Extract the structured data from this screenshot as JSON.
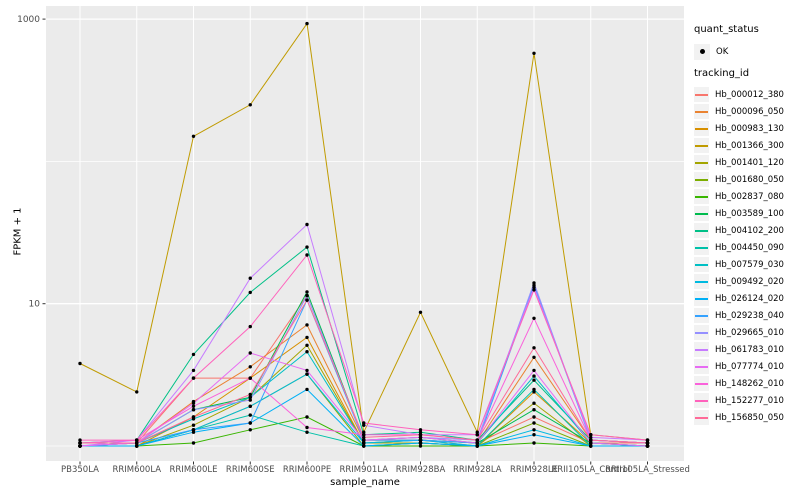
{
  "figure": {
    "background": "#FFFFFF",
    "panel_background": "#EBEBEB",
    "gridline_color": "#FFFFFF",
    "point_color": "#000000",
    "axis_text_color": "#4D4D4D",
    "tick_color": "#333333"
  },
  "axes": {
    "x": {
      "title": "sample_name"
    },
    "y": {
      "title": "FPKM + 1",
      "tick_labels": [
        "10",
        "1000"
      ],
      "tick_values": [
        10,
        1000
      ],
      "minor_values": [
        1,
        100
      ],
      "scale": "log10"
    }
  },
  "legend": {
    "quant_status": {
      "title": "quant_status",
      "items": [
        {
          "label": "OK",
          "symbol": "point"
        }
      ]
    },
    "tracking_id": {
      "title": "tracking_id"
    }
  },
  "chart_data": {
    "type": "line",
    "title": "",
    "xlabel": "sample_name",
    "ylabel": "FPKM + 1",
    "y_scale": "log10",
    "y_ticks": [
      10,
      1000
    ],
    "ylim": [
      0.8,
      1250
    ],
    "grid": true,
    "legend_position": "right",
    "point_marker": "black dot on every vertex",
    "x_categories": [
      "PB350LA",
      "RRIM600LA",
      "RRIM600LE",
      "RRIM600SE",
      "RRIM600PE",
      "RRIM901LA",
      "RRIM928BA",
      "RRIM928LA",
      "RRIM928LE",
      "RRII105LA_Control",
      "RRII105LA_Stressed"
    ],
    "series": [
      {
        "name": "Hb_000012_380",
        "color": "#F8766D",
        "values": [
          1.05,
          1.05,
          3.0,
          3.0,
          11.4,
          1.1,
          1.1,
          1.05,
          1.6,
          1.05,
          1.05
        ]
      },
      {
        "name": "Hb_000096_050",
        "color": "#EA8331",
        "values": [
          1.0,
          1.05,
          2.05,
          3.6,
          7.1,
          1.1,
          1.1,
          1.05,
          4.2,
          1.1,
          1.05
        ]
      },
      {
        "name": "Hb_000983_130",
        "color": "#D89000",
        "values": [
          1.0,
          1.0,
          1.6,
          3.0,
          5.8,
          1.05,
          1.1,
          1.0,
          2.4,
          1.05,
          1.0
        ]
      },
      {
        "name": "Hb_001366_300",
        "color": "#C09B00",
        "values": [
          3.8,
          2.4,
          150,
          250,
          930,
          1.25,
          8.7,
          1.25,
          575,
          1.2,
          1.1
        ]
      },
      {
        "name": "Hb_001401_120",
        "color": "#A3A500",
        "values": [
          1.0,
          1.0,
          1.4,
          2.2,
          5.1,
          1.05,
          1.05,
          1.0,
          2.0,
          1.0,
          1.0
        ]
      },
      {
        "name": "Hb_001680_050",
        "color": "#7CAE00",
        "values": [
          1.0,
          1.0,
          1.3,
          1.9,
          3.2,
          1.0,
          1.05,
          1.0,
          1.45,
          1.0,
          1.0
        ]
      },
      {
        "name": "Hb_002837_080",
        "color": "#39B600",
        "values": [
          1.0,
          1.0,
          1.05,
          1.3,
          1.6,
          1.0,
          1.0,
          1.0,
          1.05,
          1.0,
          1.0
        ]
      },
      {
        "name": "Hb_003589_100",
        "color": "#00BB4E",
        "values": [
          1.0,
          1.05,
          1.8,
          2.2,
          12.1,
          1.1,
          1.15,
          1.05,
          1.8,
          1.05,
          1.0
        ]
      },
      {
        "name": "Hb_004102_200",
        "color": "#00C087",
        "values": [
          1.05,
          1.1,
          4.4,
          12.0,
          25.0,
          1.2,
          1.25,
          1.1,
          2.9,
          1.1,
          1.05
        ]
      },
      {
        "name": "Hb_004450_090",
        "color": "#00C1A9",
        "values": [
          1.0,
          1.0,
          1.3,
          1.65,
          1.25,
          1.0,
          1.05,
          1.0,
          2.5,
          1.0,
          1.0
        ]
      },
      {
        "name": "Hb_007579_030",
        "color": "#00BFC4",
        "values": [
          1.0,
          1.05,
          1.55,
          2.2,
          4.6,
          1.05,
          1.1,
          1.05,
          3.1,
          1.05,
          1.0
        ]
      },
      {
        "name": "Hb_009492_020",
        "color": "#00BAE0",
        "values": [
          1.0,
          1.0,
          1.3,
          1.9,
          3.2,
          1.05,
          1.1,
          1.0,
          1.3,
          1.0,
          1.0
        ]
      },
      {
        "name": "Hb_026124_020",
        "color": "#00B0F6",
        "values": [
          1.0,
          1.0,
          1.25,
          1.45,
          2.5,
          1.0,
          1.05,
          1.0,
          1.2,
          1.0,
          1.0
        ]
      },
      {
        "name": "Hb_029238_040",
        "color": "#35A2FF",
        "values": [
          1.05,
          1.05,
          1.3,
          1.45,
          10.6,
          1.1,
          1.1,
          1.05,
          13.5,
          1.1,
          1.05
        ]
      },
      {
        "name": "Hb_029665_010",
        "color": "#9590FF",
        "values": [
          1.0,
          1.05,
          1.8,
          2.1,
          11.4,
          1.1,
          1.15,
          1.1,
          14.0,
          1.1,
          1.05
        ]
      },
      {
        "name": "Hb_061783_010",
        "color": "#C77CFF",
        "values": [
          1.0,
          1.1,
          3.4,
          15.1,
          36.0,
          1.4,
          1.2,
          1.2,
          13.0,
          1.15,
          1.1
        ]
      },
      {
        "name": "Hb_077774_010",
        "color": "#E76BF3",
        "values": [
          1.0,
          1.05,
          2.0,
          4.5,
          3.4,
          1.1,
          1.15,
          1.05,
          3.4,
          1.05,
          1.0
        ]
      },
      {
        "name": "Hb_148262_010",
        "color": "#FA62DB",
        "values": [
          1.05,
          1.1,
          1.9,
          3.0,
          1.35,
          1.2,
          1.2,
          1.1,
          7.9,
          1.1,
          1.05
        ]
      },
      {
        "name": "Hb_152277_010",
        "color": "#FF62BC",
        "values": [
          1.1,
          1.1,
          3.0,
          6.9,
          22.0,
          1.45,
          1.3,
          1.2,
          12.5,
          1.2,
          1.1
        ]
      },
      {
        "name": "Hb_156850_050",
        "color": "#FF6A98",
        "values": [
          1.05,
          1.05,
          1.6,
          2.3,
          10.6,
          1.15,
          1.2,
          1.1,
          4.9,
          1.1,
          1.05
        ]
      }
    ]
  }
}
